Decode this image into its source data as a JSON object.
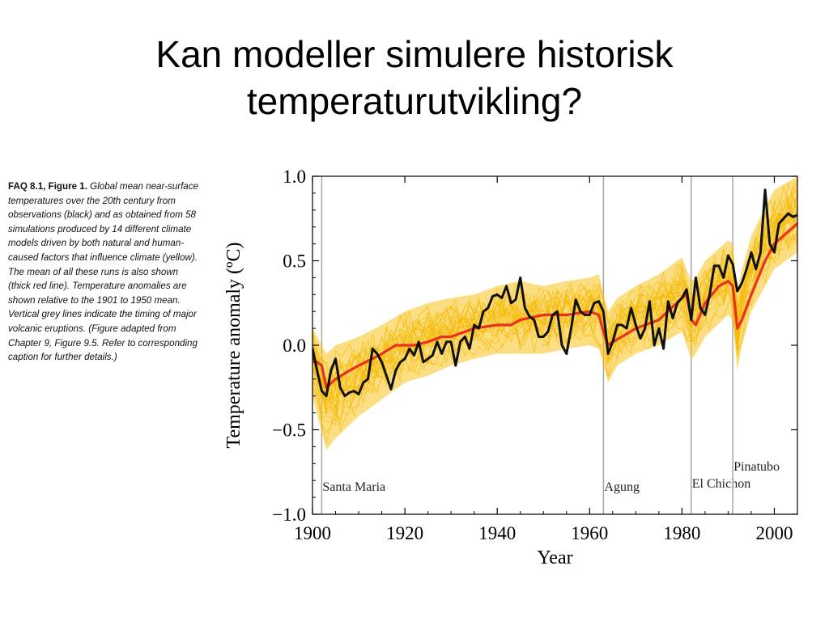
{
  "slide": {
    "title_line1": "Kan modeller simulere historisk",
    "title_line2": "temperaturutvikling?"
  },
  "caption": {
    "figure_label": "FAQ 8.1, Figure 1.",
    "text": "Global mean near-surface temperatures over the 20th century from observations (black) and as obtained from 58 simulations produced by 14 different climate models driven by both natural and human-caused factors that influence climate (yellow). The mean of all these runs is also shown (thick red line). Temperature anomalies are shown relative to the 1901 to 1950 mean. Vertical grey lines indicate the timing of major volcanic eruptions. (Figure adapted from Chapter 9, Figure 9.5. Refer to corresponding caption for further details.)"
  },
  "colors": {
    "observations": "#111111",
    "ensemble_mean": "#e8321e",
    "simulations": "#f7c21a",
    "volcano_line": "#a0a0a0"
  },
  "chart_data": {
    "type": "line",
    "title": "",
    "xlabel": "Year",
    "ylabel": "Temperature anomaly (ºC)",
    "xlim": [
      1900,
      2005
    ],
    "ylim": [
      -1.0,
      1.0
    ],
    "x_ticks": [
      1900,
      1920,
      1940,
      1960,
      1980,
      2000
    ],
    "y_ticks": [
      1.0,
      0.5,
      0.0,
      -0.5,
      -1.0
    ],
    "y_tick_labels": [
      "1.0",
      "0.5",
      "0.0",
      "−0.5",
      "−1.0"
    ],
    "grid": false,
    "legend": "none",
    "volcanic_eruptions": [
      {
        "name": "Santa Maria",
        "year": 1902
      },
      {
        "name": "Agung",
        "year": 1963
      },
      {
        "name": "El Chichon",
        "year": 1982
      },
      {
        "name": "Pinatubo",
        "year": 1991
      }
    ],
    "ensemble_spread": {
      "x": [
        1900,
        1903,
        1905,
        1910,
        1915,
        1920,
        1925,
        1930,
        1935,
        1940,
        1945,
        1950,
        1955,
        1960,
        1962,
        1964,
        1966,
        1970,
        1975,
        1980,
        1982,
        1983,
        1985,
        1990,
        1991,
        1992,
        1993,
        1995,
        2000,
        2005
      ],
      "upper": [
        0.1,
        -0.05,
        0.0,
        0.05,
        0.12,
        0.2,
        0.25,
        0.28,
        0.3,
        0.35,
        0.38,
        0.35,
        0.38,
        0.4,
        0.42,
        0.2,
        0.28,
        0.35,
        0.42,
        0.52,
        0.38,
        0.4,
        0.5,
        0.62,
        0.6,
        0.32,
        0.45,
        0.65,
        0.92,
        1.0
      ],
      "lower": [
        -0.3,
        -0.62,
        -0.55,
        -0.42,
        -0.32,
        -0.22,
        -0.18,
        -0.12,
        -0.08,
        -0.05,
        -0.05,
        -0.05,
        -0.02,
        0.0,
        -0.02,
        -0.22,
        -0.12,
        -0.05,
        0.0,
        0.08,
        -0.08,
        -0.05,
        0.05,
        0.18,
        0.15,
        -0.15,
        0.0,
        0.2,
        0.45,
        0.55
      ]
    },
    "series": [
      {
        "key": "mean",
        "x": [
          1900,
          1902,
          1903,
          1905,
          1908,
          1910,
          1913,
          1915,
          1918,
          1920,
          1922,
          1925,
          1928,
          1930,
          1935,
          1940,
          1943,
          1945,
          1950,
          1955,
          1960,
          1962,
          1963,
          1964,
          1965,
          1967,
          1970,
          1975,
          1980,
          1981,
          1982,
          1983,
          1985,
          1988,
          1990,
          1991,
          1992,
          1993,
          1995,
          1998,
          2000,
          2005
        ],
        "values": [
          -0.08,
          -0.12,
          -0.25,
          -0.2,
          -0.15,
          -0.12,
          -0.08,
          -0.05,
          0.0,
          0.0,
          0.0,
          0.02,
          0.05,
          0.05,
          0.1,
          0.12,
          0.12,
          0.15,
          0.18,
          0.18,
          0.2,
          0.18,
          0.08,
          0.0,
          0.02,
          0.05,
          0.1,
          0.15,
          0.28,
          0.3,
          0.15,
          0.12,
          0.25,
          0.35,
          0.38,
          0.35,
          0.1,
          0.15,
          0.3,
          0.5,
          0.6,
          0.72
        ]
      },
      {
        "key": "observations",
        "x": [
          1900,
          1901,
          1902,
          1903,
          1904,
          1905,
          1906,
          1907,
          1908,
          1909,
          1910,
          1911,
          1912,
          1913,
          1914,
          1915,
          1916,
          1917,
          1918,
          1919,
          1920,
          1921,
          1922,
          1923,
          1924,
          1925,
          1926,
          1927,
          1928,
          1929,
          1930,
          1931,
          1932,
          1933,
          1934,
          1935,
          1936,
          1937,
          1938,
          1939,
          1940,
          1941,
          1942,
          1943,
          1944,
          1945,
          1946,
          1947,
          1948,
          1949,
          1950,
          1951,
          1952,
          1953,
          1954,
          1955,
          1956,
          1957,
          1958,
          1959,
          1960,
          1961,
          1962,
          1963,
          1964,
          1965,
          1966,
          1967,
          1968,
          1969,
          1970,
          1971,
          1972,
          1973,
          1974,
          1975,
          1976,
          1977,
          1978,
          1979,
          1980,
          1981,
          1982,
          1983,
          1984,
          1985,
          1986,
          1987,
          1988,
          1989,
          1990,
          1991,
          1992,
          1993,
          1994,
          1995,
          1996,
          1997,
          1998,
          1999,
          2000,
          2001,
          2002,
          2003,
          2004,
          2005
        ],
        "values": [
          -0.02,
          -0.15,
          -0.27,
          -0.3,
          -0.15,
          -0.08,
          -0.25,
          -0.3,
          -0.28,
          -0.27,
          -0.29,
          -0.22,
          -0.2,
          -0.02,
          -0.05,
          -0.1,
          -0.18,
          -0.26,
          -0.15,
          -0.1,
          -0.08,
          -0.02,
          -0.06,
          0.02,
          -0.1,
          -0.08,
          -0.06,
          0.02,
          -0.05,
          0.02,
          0.02,
          -0.12,
          0.02,
          0.05,
          -0.02,
          0.12,
          0.1,
          0.2,
          0.22,
          0.29,
          0.3,
          0.28,
          0.35,
          0.25,
          0.27,
          0.4,
          0.22,
          0.17,
          0.15,
          0.05,
          0.05,
          0.08,
          0.18,
          0.2,
          0.0,
          -0.05,
          0.1,
          0.27,
          0.2,
          0.18,
          0.18,
          0.25,
          0.26,
          0.2,
          -0.05,
          0.02,
          0.12,
          0.12,
          0.1,
          0.22,
          0.12,
          0.04,
          0.1,
          0.26,
          0.0,
          0.1,
          -0.02,
          0.26,
          0.16,
          0.25,
          0.28,
          0.33,
          0.15,
          0.4,
          0.22,
          0.18,
          0.3,
          0.47,
          0.47,
          0.4,
          0.53,
          0.48,
          0.32,
          0.37,
          0.45,
          0.55,
          0.45,
          0.55,
          0.92,
          0.6,
          0.55,
          0.72,
          0.75,
          0.78,
          0.76,
          0.77
        ]
      }
    ]
  }
}
